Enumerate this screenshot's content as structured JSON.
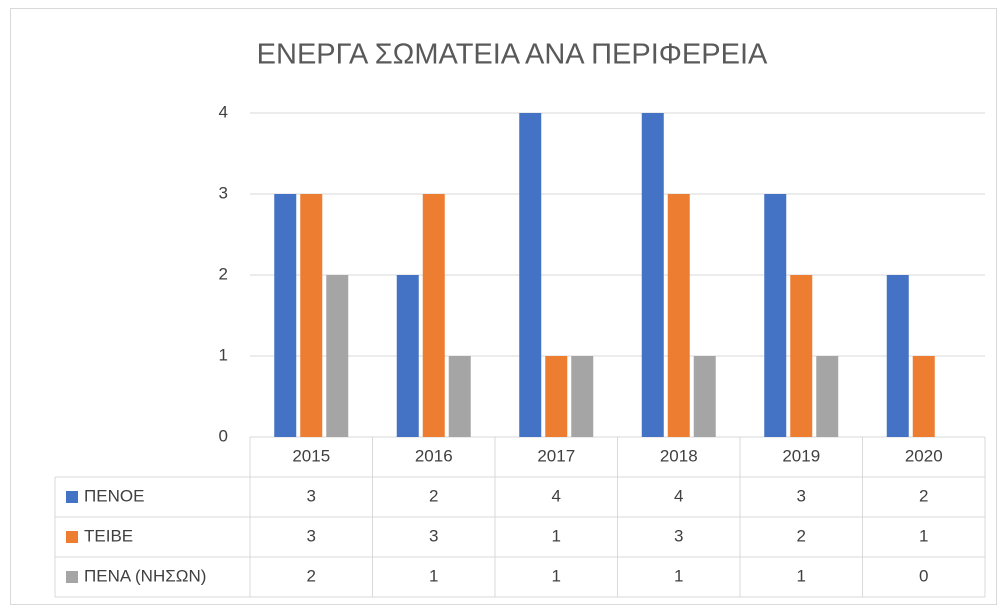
{
  "chart_data": {
    "type": "bar",
    "title": "ΕΝΕΡΓΑ ΣΩΜΑΤΕΙΑ ΑΝΑ ΠΕΡΙΦΕΡΕΙΑ",
    "categories": [
      "2015",
      "2016",
      "2017",
      "2018",
      "2019",
      "2020"
    ],
    "series": [
      {
        "name": "ΠΕΝΟΕ",
        "color": "#4472c4",
        "values": [
          3,
          2,
          4,
          4,
          3,
          2
        ]
      },
      {
        "name": "ΤΕΙΒΕ",
        "color": "#ed7d31",
        "values": [
          3,
          3,
          1,
          3,
          2,
          1
        ]
      },
      {
        "name": "ΠΕΝΑ (ΝΗΣΩΝ)",
        "color": "#a5a5a5",
        "values": [
          2,
          1,
          1,
          1,
          1,
          0
        ]
      }
    ],
    "ylim": [
      0,
      4
    ],
    "yticks": [
      0,
      1,
      2,
      3,
      4
    ],
    "grid": true
  }
}
